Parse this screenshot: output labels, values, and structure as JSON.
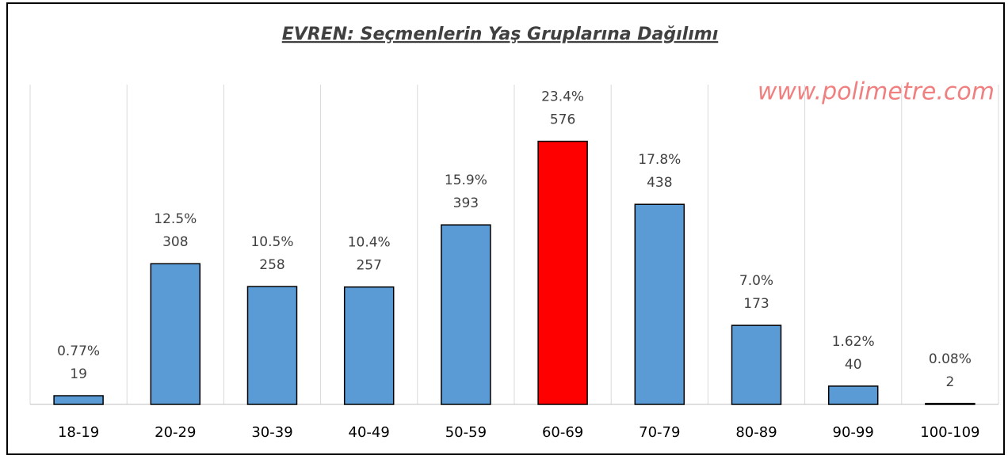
{
  "chart_data": {
    "type": "bar",
    "title": "EVREN: Seçmenlerin Yaş Gruplarına Dağılımı",
    "watermark": "www.polimetre.com",
    "categories": [
      "18-19",
      "20-29",
      "30-39",
      "40-49",
      "50-59",
      "60-69",
      "70-79",
      "80-89",
      "90-99",
      "100-109"
    ],
    "values": [
      19,
      308,
      258,
      257,
      393,
      576,
      438,
      173,
      40,
      2
    ],
    "percent_labels": [
      "0.77%",
      "12.5%",
      "10.5%",
      "10.4%",
      "15.9%",
      "23.4%",
      "17.8%",
      "7.0%",
      "1.62%",
      "0.08%"
    ],
    "colors": [
      "#5b9bd5",
      "#5b9bd5",
      "#5b9bd5",
      "#5b9bd5",
      "#5b9bd5",
      "#ff0000",
      "#5b9bd5",
      "#5b9bd5",
      "#5b9bd5",
      "#5b9bd5"
    ],
    "ylim": [
      0,
      700
    ],
    "grid": true
  }
}
